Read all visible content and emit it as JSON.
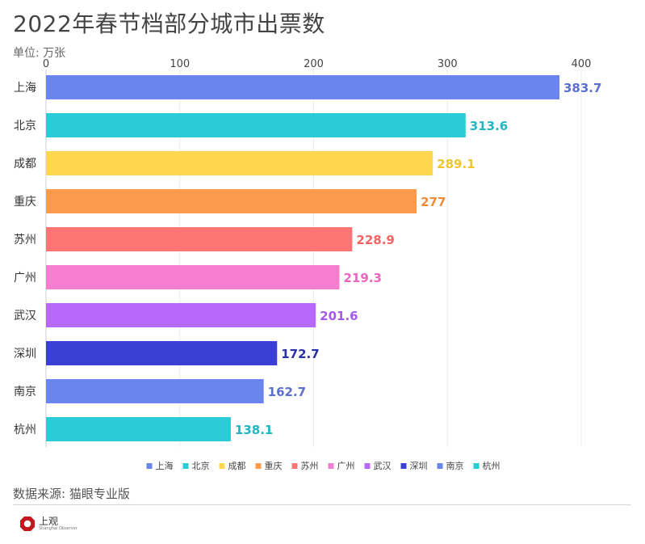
{
  "header": {
    "title": "2022年春节档部分城市出票数",
    "unit": "单位: 万张"
  },
  "footer": {
    "source": "数据来源: 猫眼专业版",
    "logo_text": "上观",
    "logo_subtext": "Shanghai Observer"
  },
  "chart_data": {
    "type": "bar",
    "orientation": "horizontal",
    "title": "2022年春节档部分城市出票数",
    "xlabel": "",
    "ylabel": "",
    "unit": "单位: 万张",
    "xlim": [
      0,
      400
    ],
    "xticks": [
      0,
      100,
      200,
      300,
      400
    ],
    "grid": true,
    "legend_position": "bottom",
    "categories": [
      "上海",
      "北京",
      "成都",
      "重庆",
      "苏州",
      "广州",
      "武汉",
      "深圳",
      "南京",
      "杭州"
    ],
    "values": [
      383.7,
      313.6,
      289.1,
      277,
      228.9,
      219.3,
      201.6,
      172.7,
      162.7,
      138.1
    ],
    "value_labels": [
      "383.7",
      "313.6",
      "289.1",
      "277",
      "228.9",
      "219.3",
      "201.6",
      "172.7",
      "162.7",
      "138.1"
    ],
    "colors": [
      "#6b85ee",
      "#2bcbd8",
      "#fed650",
      "#fd9a4c",
      "#fe7574",
      "#f57ed1",
      "#b769fb",
      "#3b3fd3",
      "#6b85ee",
      "#2bcbd8"
    ],
    "label_colors": [
      "#5a6fcf",
      "#22b5c2",
      "#f0c52f",
      "#f08a36",
      "#f26363",
      "#e668c0",
      "#a45ae8",
      "#2b2fa8",
      "#5a6fcf",
      "#22b5c2"
    ]
  }
}
